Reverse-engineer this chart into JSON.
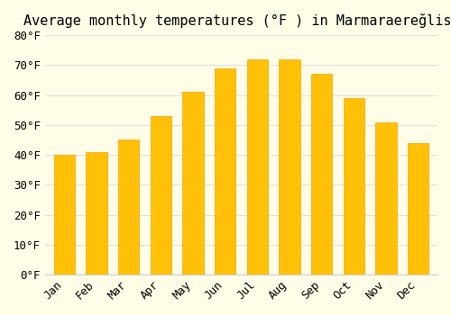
{
  "title": "Average monthly temperatures (°F ) in Marmaraereğlisi",
  "months": [
    "Jan",
    "Feb",
    "Mar",
    "Apr",
    "May",
    "Jun",
    "Jul",
    "Aug",
    "Sep",
    "Oct",
    "Nov",
    "Dec"
  ],
  "values": [
    40,
    41,
    45,
    53,
    61,
    69,
    72,
    72,
    67,
    59,
    51,
    44
  ],
  "bar_color_top": "#FFC107",
  "bar_color_bottom": "#FFB300",
  "ylim": [
    0,
    80
  ],
  "yticks": [
    0,
    10,
    20,
    30,
    40,
    50,
    60,
    70,
    80
  ],
  "ytick_labels": [
    "0°F",
    "10°F",
    "20°F",
    "30°F",
    "40°F",
    "50°F",
    "60°F",
    "70°F",
    "80°F"
  ],
  "background_color": "#FFFDE7",
  "grid_color": "#E0E0E0",
  "bar_edge_color": "#FFA000",
  "title_fontsize": 11,
  "tick_fontsize": 9,
  "font_family": "monospace"
}
